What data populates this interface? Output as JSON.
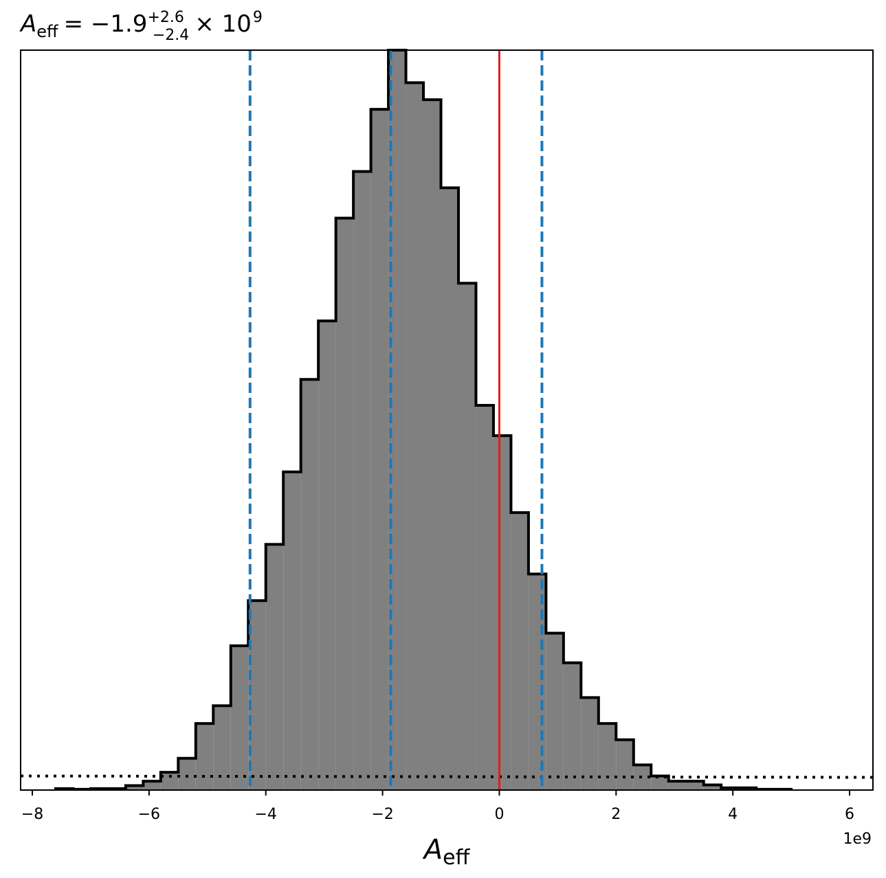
{
  "chart_data": {
    "type": "histogram",
    "title_symbol": "A",
    "title_subscript": "eff",
    "title_value": "= −1.9",
    "title_upper": "+2.6",
    "title_lower": "−2.4",
    "title_suffix": "× 10",
    "title_exponent": "9",
    "xlabel_symbol": "A",
    "xlabel_subscript": "eff",
    "x_offset_label": "1e9",
    "xlim": [
      -8.2,
      6.4
    ],
    "xticks": [
      -8,
      -6,
      -4,
      -2,
      0,
      2,
      4,
      6
    ],
    "xtick_labels": [
      "−8",
      "−6",
      "−4",
      "−2",
      "0",
      "2",
      "4",
      "6"
    ],
    "ylim": [
      0,
      1.0
    ],
    "bin_edges": [
      -7.6,
      -7.3,
      -7.0,
      -6.7,
      -6.4,
      -6.1,
      -5.8,
      -5.5,
      -5.2,
      -4.9,
      -4.6,
      -4.3,
      -4.0,
      -3.7,
      -3.4,
      -3.1,
      -2.8,
      -2.5,
      -2.2,
      -1.9,
      -1.6,
      -1.3,
      -1.0,
      -0.7,
      -0.4,
      -0.1,
      0.2,
      0.5,
      0.8,
      1.1,
      1.4,
      1.7,
      2.0,
      2.3,
      2.6,
      2.9,
      3.5,
      3.8,
      4.4,
      5.0
    ],
    "counts": [
      0.002,
      0.001,
      0.002,
      0.002,
      0.006,
      0.012,
      0.024,
      0.043,
      0.09,
      0.114,
      0.195,
      0.256,
      0.332,
      0.43,
      0.555,
      0.634,
      0.773,
      0.836,
      0.92,
      1.0,
      0.956,
      0.933,
      0.814,
      0.685,
      0.52,
      0.479,
      0.375,
      0.292,
      0.212,
      0.172,
      0.125,
      0.09,
      0.068,
      0.034,
      0.019,
      0.012,
      0.007,
      0.003,
      0.001
    ],
    "fill_color": "#808080",
    "edge_color": "#000000",
    "quantile_lines": [
      -4.27,
      -1.86,
      0.73
    ],
    "quantile_color": "#1f77b4",
    "injected_value": 0,
    "injected_color": "#e41a1c",
    "prior_level": 0.019
  }
}
